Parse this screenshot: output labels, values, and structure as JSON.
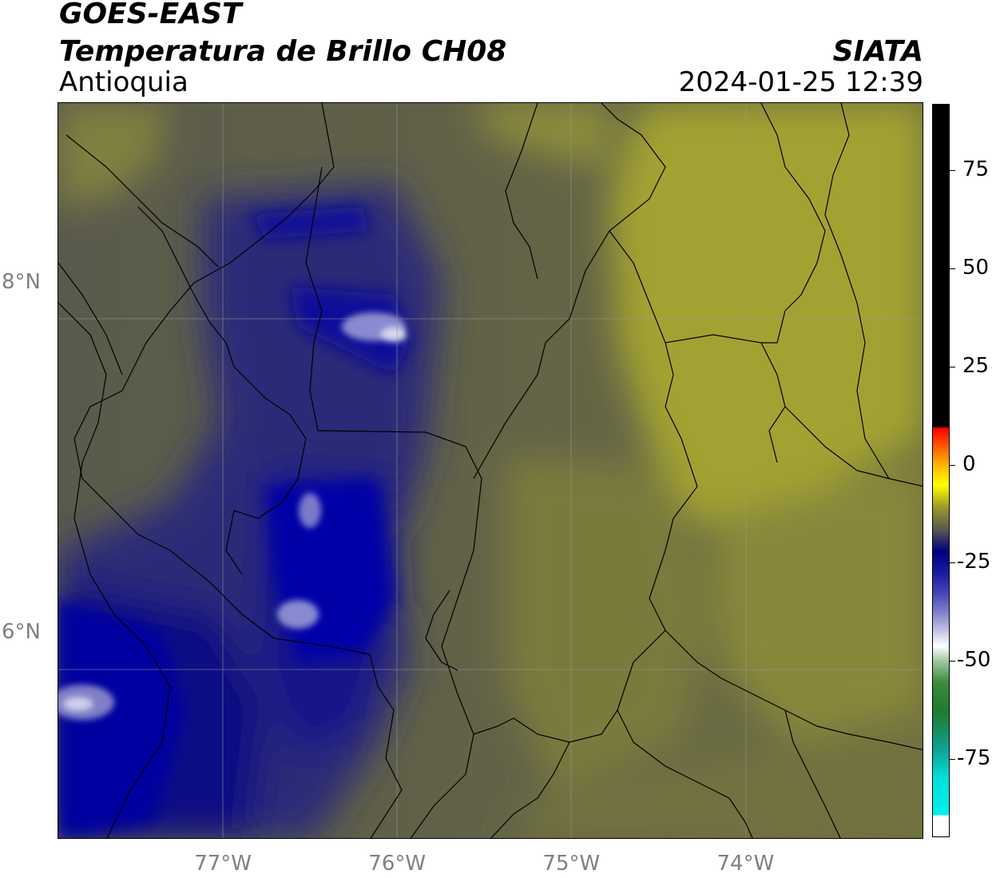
{
  "header": {
    "satellite": "GOES-EAST",
    "product": "Temperatura de Brillo CH08",
    "region": "Antioquia",
    "organization": "SIATA",
    "datetime": "2024-01-25 12:39"
  },
  "map": {
    "lon_range": [
      -77.95,
      -72.98
    ],
    "lat_range": [
      4.82,
      9.03
    ],
    "lon_ticks": [
      {
        "value": -77,
        "label": "77°W"
      },
      {
        "value": -76,
        "label": "76°W"
      },
      {
        "value": -75,
        "label": "75°W"
      },
      {
        "value": -74,
        "label": "74°W"
      }
    ],
    "lat_ticks": [
      {
        "value": 8,
        "label": "8°N"
      },
      {
        "value": 6,
        "label": "6°N"
      }
    ],
    "gridlines": true,
    "colors": {
      "background_warm": "#6a6a48",
      "yellow_band": "#a6a633",
      "cold_blue": "#00008a",
      "mid_blue": "#3a3a8a",
      "border_lines": "#000000"
    }
  },
  "colorbar": {
    "range": [
      -95,
      92
    ],
    "ticks": [
      {
        "value": 75,
        "label": "75"
      },
      {
        "value": 50,
        "label": "50"
      },
      {
        "value": 25,
        "label": "25"
      },
      {
        "value": 0,
        "label": "0"
      },
      {
        "value": -25,
        "label": "-25"
      },
      {
        "value": -50,
        "label": "-50"
      },
      {
        "value": -75,
        "label": "-75"
      }
    ]
  }
}
